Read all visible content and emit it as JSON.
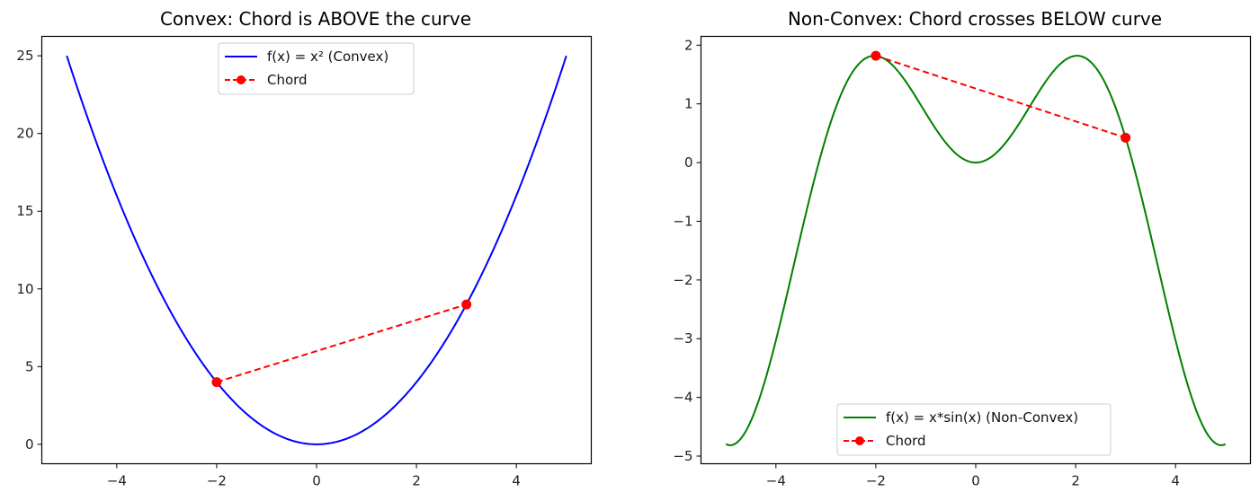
{
  "chart_data": [
    {
      "type": "line",
      "title": "Convex: Chord is ABOVE the curve",
      "xlabel": "",
      "ylabel": "",
      "xlim": [
        -5.5,
        5.5
      ],
      "ylim": [
        -1.25,
        26.25
      ],
      "xticks": [
        -4,
        -2,
        0,
        2,
        4
      ],
      "yticks": [
        0,
        5,
        10,
        15,
        20,
        25
      ],
      "xtick_labels": [
        "−4",
        "−2",
        "0",
        "2",
        "4"
      ],
      "ytick_labels": [
        "0",
        "5",
        "10",
        "15",
        "20",
        "25"
      ],
      "grid": false,
      "legend_position": "upper center",
      "series": [
        {
          "name": "f(x) = x² (Convex)",
          "color": "#0000ff",
          "style": "solid",
          "function": "x^2",
          "x_range": [
            -5,
            5
          ]
        },
        {
          "name": "Chord",
          "color": "#ff0000",
          "style": "dashed",
          "marker": "o",
          "x": [
            -2,
            3
          ],
          "y": [
            4,
            9
          ]
        }
      ]
    },
    {
      "type": "line",
      "title": "Non-Convex: Chord crosses BELOW curve",
      "xlabel": "",
      "ylabel": "",
      "xlim": [
        -5.5,
        5.5
      ],
      "ylim": [
        -5.13,
        2.15
      ],
      "xticks": [
        -4,
        -2,
        0,
        2,
        4
      ],
      "yticks": [
        -5,
        -4,
        -3,
        -2,
        -1,
        0,
        1,
        2
      ],
      "xtick_labels": [
        "−4",
        "−2",
        "0",
        "2",
        "4"
      ],
      "ytick_labels": [
        "−5",
        "−4",
        "−3",
        "−2",
        "−1",
        "0",
        "1",
        "2"
      ],
      "grid": false,
      "legend_position": "lower center",
      "series": [
        {
          "name": "f(x) = x*sin(x) (Non-Convex)",
          "color": "#008000",
          "style": "solid",
          "function": "x*sin(x)",
          "x_range": [
            -5,
            5
          ]
        },
        {
          "name": "Chord",
          "color": "#ff0000",
          "style": "dashed",
          "marker": "o",
          "x": [
            -2,
            3
          ],
          "y": [
            1.819,
            0.423
          ]
        }
      ]
    }
  ]
}
